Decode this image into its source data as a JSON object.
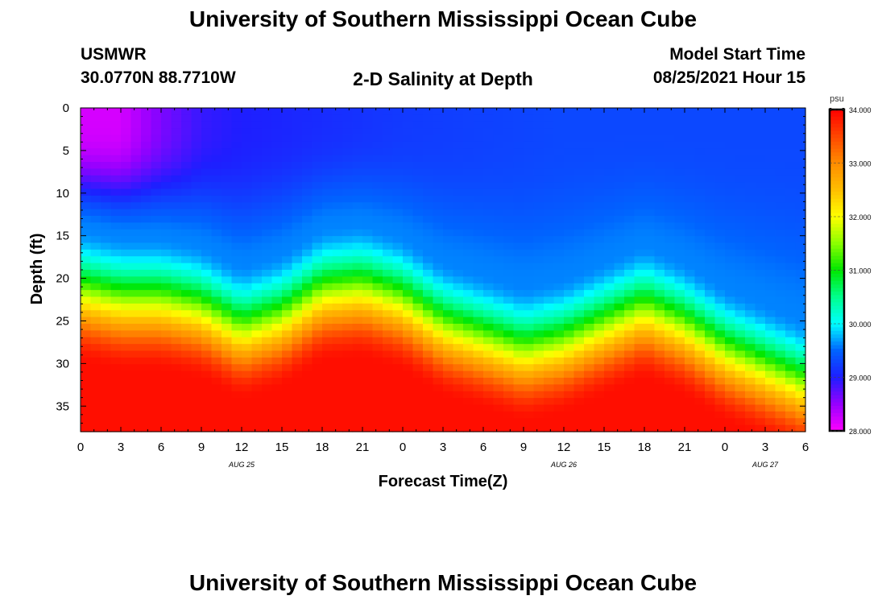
{
  "header": {
    "title": "University of Southern Mississippi Ocean Cube",
    "station": "USMWR",
    "coordinates": "30.0770N  88.7710W",
    "plot_title": "2-D Salinity at Depth",
    "model_start_label": "Model Start Time",
    "model_start_value": "08/25/2021 Hour 15"
  },
  "footer": {
    "title": "University of Southern Mississippi Ocean Cube"
  },
  "chart_data": {
    "type": "heatmap",
    "title": "2-D Salinity at Depth",
    "xlabel": "Forecast Time(Z)",
    "ylabel": "Depth (ft)",
    "x_range_hours": [
      0,
      54
    ],
    "x_tick_labels": [
      "0",
      "3",
      "6",
      "9",
      "12",
      "15",
      "18",
      "21",
      "0",
      "3",
      "6",
      "9",
      "12",
      "15",
      "18",
      "21",
      "0",
      "3",
      "6"
    ],
    "date_labels": [
      {
        "label": "AUG 25",
        "hour": 12
      },
      {
        "label": "AUG 26",
        "hour": 36
      },
      {
        "label": "AUG 27",
        "hour": 51
      }
    ],
    "ylim": [
      0,
      38
    ],
    "y_ticks": [
      0,
      5,
      10,
      15,
      20,
      25,
      30,
      35
    ],
    "colorbar": {
      "unit": "psu",
      "min": 28.0,
      "max": 34.0,
      "tick_values": [
        34.0,
        33.0,
        32.0,
        31.0,
        30.0,
        29.0,
        28.0
      ],
      "tick_labels": [
        "34.000",
        "33.000",
        "32.000",
        "31.000",
        "30.000",
        "29.000",
        "28.000"
      ]
    },
    "halocline_depth_ft": {
      "hours": [
        0,
        3,
        6,
        9,
        12,
        15,
        18,
        21,
        24,
        27,
        30,
        33,
        36,
        39,
        42,
        45,
        48,
        51,
        54
      ],
      "depth_ft": [
        20,
        21,
        21,
        22,
        24.5,
        23,
        20,
        19.5,
        21,
        24,
        25.5,
        27,
        26,
        24,
        22,
        24,
        27,
        29,
        31
      ]
    },
    "surface_salinity_psu": {
      "hours": [
        0,
        3,
        6,
        9,
        12,
        18,
        24,
        36,
        54
      ],
      "psu": [
        28.2,
        28.2,
        28.6,
        28.9,
        29.0,
        29.1,
        29.2,
        29.3,
        29.3
      ]
    },
    "bottom_salinity_psu": 33.9
  }
}
